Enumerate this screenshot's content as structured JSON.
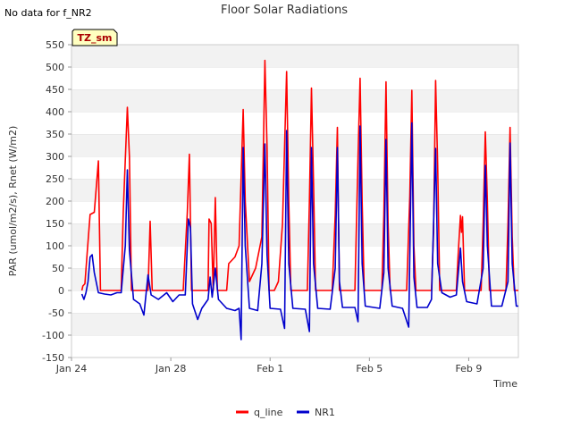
{
  "no_data_note": "No data for f_NR2",
  "badge": "TZ_sm",
  "chart_data": {
    "type": "line",
    "title": "Floor Solar Radiations",
    "xlabel": "Time",
    "ylabel": "PAR (umol/m2/s), Rnet (W/m2)",
    "ylim": [
      -150,
      550
    ],
    "yticks": [
      -150,
      -100,
      -50,
      0,
      50,
      100,
      150,
      200,
      250,
      300,
      350,
      400,
      450,
      500,
      550
    ],
    "xlim": [
      "2024-01-24",
      "2024-02-11"
    ],
    "xticks": [
      {
        "x": "2024-01-24",
        "label": "Jan 24"
      },
      {
        "x": "2024-01-28",
        "label": "Jan 28"
      },
      {
        "x": "2024-02-01",
        "label": "Feb 1"
      },
      {
        "x": "2024-02-05",
        "label": "Feb 5"
      },
      {
        "x": "2024-02-09",
        "label": "Feb 9"
      }
    ],
    "grid": "horizontal-bands",
    "legend_placement": "bottom",
    "series": [
      {
        "name": "q_line",
        "color": "#ff0000",
        "points": [
          [
            "2024-01-24T10:00",
            0
          ],
          [
            "2024-01-24T11:00",
            10
          ],
          [
            "2024-01-24T13:00",
            15
          ],
          [
            "2024-01-24T15:00",
            80
          ],
          [
            "2024-01-24T18:00",
            170
          ],
          [
            "2024-01-24T22:00",
            175
          ],
          [
            "2024-01-25T02:00",
            290
          ],
          [
            "2024-01-25T04:00",
            0
          ],
          [
            "2024-01-26T00:00",
            0
          ],
          [
            "2024-01-26T02:00",
            175
          ],
          [
            "2024-01-26T06:00",
            410
          ],
          [
            "2024-01-26T08:00",
            300
          ],
          [
            "2024-01-26T10:00",
            0
          ],
          [
            "2024-01-27T02:00",
            0
          ],
          [
            "2024-01-27T04:00",
            155
          ],
          [
            "2024-01-27T06:00",
            0
          ],
          [
            "2024-01-28T12:00",
            0
          ],
          [
            "2024-01-28T16:00",
            175
          ],
          [
            "2024-01-28T18:00",
            305
          ],
          [
            "2024-01-28T20:00",
            0
          ],
          [
            "2024-01-29T12:00",
            0
          ],
          [
            "2024-01-29T13:00",
            160
          ],
          [
            "2024-01-29T15:00",
            150
          ],
          [
            "2024-01-29T17:00",
            0
          ],
          [
            "2024-01-29T19:00",
            208
          ],
          [
            "2024-01-29T21:00",
            0
          ],
          [
            "2024-01-30T06:00",
            0
          ],
          [
            "2024-01-30T08:00",
            60
          ],
          [
            "2024-01-30T14:00",
            75
          ],
          [
            "2024-01-30T18:00",
            100
          ],
          [
            "2024-01-30T22:00",
            405
          ],
          [
            "2024-01-31T00:00",
            200
          ],
          [
            "2024-01-31T04:00",
            20
          ],
          [
            "2024-01-31T08:00",
            40
          ],
          [
            "2024-01-31T10:00",
            50
          ],
          [
            "2024-01-31T16:00",
            120
          ],
          [
            "2024-01-31T19:00",
            515
          ],
          [
            "2024-01-31T21:00",
            320
          ],
          [
            "2024-01-31T23:00",
            0
          ],
          [
            "2024-02-01T04:00",
            0
          ],
          [
            "2024-02-01T08:00",
            20
          ],
          [
            "2024-02-01T12:00",
            150
          ],
          [
            "2024-02-01T16:00",
            490
          ],
          [
            "2024-02-01T18:00",
            200
          ],
          [
            "2024-02-01T20:00",
            0
          ],
          [
            "2024-02-02T12:00",
            0
          ],
          [
            "2024-02-02T14:00",
            200
          ],
          [
            "2024-02-02T16:00",
            453
          ],
          [
            "2024-02-02T18:00",
            240
          ],
          [
            "2024-02-02T20:00",
            0
          ],
          [
            "2024-02-03T12:00",
            0
          ],
          [
            "2024-02-03T15:00",
            170
          ],
          [
            "2024-02-03T17:00",
            365
          ],
          [
            "2024-02-03T19:00",
            0
          ],
          [
            "2024-02-04T10:00",
            0
          ],
          [
            "2024-02-04T13:00",
            300
          ],
          [
            "2024-02-04T15:00",
            475
          ],
          [
            "2024-02-04T17:00",
            200
          ],
          [
            "2024-02-04T19:00",
            0
          ],
          [
            "2024-02-05T12:00",
            0
          ],
          [
            "2024-02-05T14:00",
            170
          ],
          [
            "2024-02-05T16:00",
            467
          ],
          [
            "2024-02-05T18:00",
            150
          ],
          [
            "2024-02-05T20:00",
            0
          ],
          [
            "2024-02-06T12:00",
            0
          ],
          [
            "2024-02-06T15:00",
            210
          ],
          [
            "2024-02-06T17:00",
            448
          ],
          [
            "2024-02-06T19:00",
            100
          ],
          [
            "2024-02-06T21:00",
            0
          ],
          [
            "2024-02-07T12:00",
            0
          ],
          [
            "2024-02-07T14:00",
            130
          ],
          [
            "2024-02-07T16:00",
            470
          ],
          [
            "2024-02-07T18:00",
            280
          ],
          [
            "2024-02-07T20:00",
            0
          ],
          [
            "2024-02-08T12:00",
            0
          ],
          [
            "2024-02-08T14:00",
            90
          ],
          [
            "2024-02-08T16:00",
            168
          ],
          [
            "2024-02-08T17:00",
            130
          ],
          [
            "2024-02-08T18:00",
            165
          ],
          [
            "2024-02-08T20:00",
            0
          ],
          [
            "2024-02-09T12:00",
            0
          ],
          [
            "2024-02-09T14:00",
            150
          ],
          [
            "2024-02-09T16:00",
            355
          ],
          [
            "2024-02-09T18:00",
            200
          ],
          [
            "2024-02-09T20:00",
            0
          ],
          [
            "2024-02-10T12:00",
            0
          ],
          [
            "2024-02-10T14:00",
            150
          ],
          [
            "2024-02-10T16:00",
            365
          ],
          [
            "2024-02-10T18:00",
            120
          ],
          [
            "2024-02-10T20:00",
            0
          ],
          [
            "2024-02-11T00:00",
            0
          ]
        ]
      },
      {
        "name": "NR1",
        "color": "#0000cc",
        "points": [
          [
            "2024-01-24T10:00",
            -8
          ],
          [
            "2024-01-24T12:00",
            -20
          ],
          [
            "2024-01-24T14:00",
            -5
          ],
          [
            "2024-01-24T16:00",
            20
          ],
          [
            "2024-01-24T18:00",
            75
          ],
          [
            "2024-01-24T20:00",
            80
          ],
          [
            "2024-01-24T22:00",
            40
          ],
          [
            "2024-01-25T02:00",
            -5
          ],
          [
            "2024-01-25T08:00",
            -8
          ],
          [
            "2024-01-25T14:00",
            -10
          ],
          [
            "2024-01-25T20:00",
            -5
          ],
          [
            "2024-01-26T00:00",
            -5
          ],
          [
            "2024-01-26T04:00",
            100
          ],
          [
            "2024-01-26T06:00",
            270
          ],
          [
            "2024-01-26T08:00",
            90
          ],
          [
            "2024-01-26T12:00",
            -20
          ],
          [
            "2024-01-26T18:00",
            -30
          ],
          [
            "2024-01-26T22:00",
            -55
          ],
          [
            "2024-01-27T02:00",
            35
          ],
          [
            "2024-01-27T05:00",
            -10
          ],
          [
            "2024-01-27T12:00",
            -20
          ],
          [
            "2024-01-27T20:00",
            -5
          ],
          [
            "2024-01-28T02:00",
            -25
          ],
          [
            "2024-01-28T08:00",
            -10
          ],
          [
            "2024-01-28T14:00",
            -10
          ],
          [
            "2024-01-28T17:00",
            160
          ],
          [
            "2024-01-28T19:00",
            140
          ],
          [
            "2024-01-28T21:00",
            -30
          ],
          [
            "2024-01-29T02:00",
            -65
          ],
          [
            "2024-01-29T06:00",
            -40
          ],
          [
            "2024-01-29T12:00",
            -20
          ],
          [
            "2024-01-29T14:00",
            30
          ],
          [
            "2024-01-29T16:00",
            -15
          ],
          [
            "2024-01-29T19:00",
            50
          ],
          [
            "2024-01-29T22:00",
            -20
          ],
          [
            "2024-01-30T06:00",
            -40
          ],
          [
            "2024-01-30T14:00",
            -45
          ],
          [
            "2024-01-30T18:00",
            -40
          ],
          [
            "2024-01-30T20:00",
            -110
          ],
          [
            "2024-01-30T22:00",
            320
          ],
          [
            "2024-01-31T00:00",
            100
          ],
          [
            "2024-01-31T04:00",
            -40
          ],
          [
            "2024-01-31T12:00",
            -45
          ],
          [
            "2024-01-31T16:00",
            60
          ],
          [
            "2024-01-31T19:00",
            328
          ],
          [
            "2024-01-31T21:00",
            80
          ],
          [
            "2024-02-01T00:00",
            -40
          ],
          [
            "2024-02-01T10:00",
            -42
          ],
          [
            "2024-02-01T14:00",
            -85
          ],
          [
            "2024-02-01T16:00",
            358
          ],
          [
            "2024-02-01T18:00",
            60
          ],
          [
            "2024-02-01T22:00",
            -40
          ],
          [
            "2024-02-02T10:00",
            -42
          ],
          [
            "2024-02-02T14:00",
            -92
          ],
          [
            "2024-02-02T16:00",
            320
          ],
          [
            "2024-02-02T18:00",
            60
          ],
          [
            "2024-02-02T22:00",
            -40
          ],
          [
            "2024-02-03T10:00",
            -42
          ],
          [
            "2024-02-03T15:00",
            50
          ],
          [
            "2024-02-03T17:00",
            320
          ],
          [
            "2024-02-03T19:00",
            20
          ],
          [
            "2024-02-03T22:00",
            -38
          ],
          [
            "2024-02-04T10:00",
            -38
          ],
          [
            "2024-02-04T13:00",
            -70
          ],
          [
            "2024-02-04T15:00",
            368
          ],
          [
            "2024-02-04T17:00",
            60
          ],
          [
            "2024-02-04T20:00",
            -35
          ],
          [
            "2024-02-05T10:00",
            -40
          ],
          [
            "2024-02-05T14:00",
            40
          ],
          [
            "2024-02-05T16:00",
            338
          ],
          [
            "2024-02-05T18:00",
            50
          ],
          [
            "2024-02-05T22:00",
            -35
          ],
          [
            "2024-02-06T08:00",
            -40
          ],
          [
            "2024-02-06T14:00",
            -82
          ],
          [
            "2024-02-06T17:00",
            375
          ],
          [
            "2024-02-06T19:00",
            30
          ],
          [
            "2024-02-06T22:00",
            -38
          ],
          [
            "2024-02-07T08:00",
            -38
          ],
          [
            "2024-02-07T12:00",
            -20
          ],
          [
            "2024-02-07T16:00",
            318
          ],
          [
            "2024-02-07T18:00",
            60
          ],
          [
            "2024-02-07T22:00",
            -5
          ],
          [
            "2024-02-08T06:00",
            -15
          ],
          [
            "2024-02-08T12:00",
            -10
          ],
          [
            "2024-02-08T16:00",
            95
          ],
          [
            "2024-02-08T18:00",
            20
          ],
          [
            "2024-02-08T22:00",
            -25
          ],
          [
            "2024-02-09T08:00",
            -30
          ],
          [
            "2024-02-09T14:00",
            50
          ],
          [
            "2024-02-09T16:00",
            280
          ],
          [
            "2024-02-09T18:00",
            100
          ],
          [
            "2024-02-09T22:00",
            -35
          ],
          [
            "2024-02-10T08:00",
            -35
          ],
          [
            "2024-02-10T14:00",
            20
          ],
          [
            "2024-02-10T16:00",
            330
          ],
          [
            "2024-02-10T18:00",
            60
          ],
          [
            "2024-02-10T22:00",
            -35
          ],
          [
            "2024-02-11T00:00",
            -35
          ]
        ]
      }
    ]
  }
}
